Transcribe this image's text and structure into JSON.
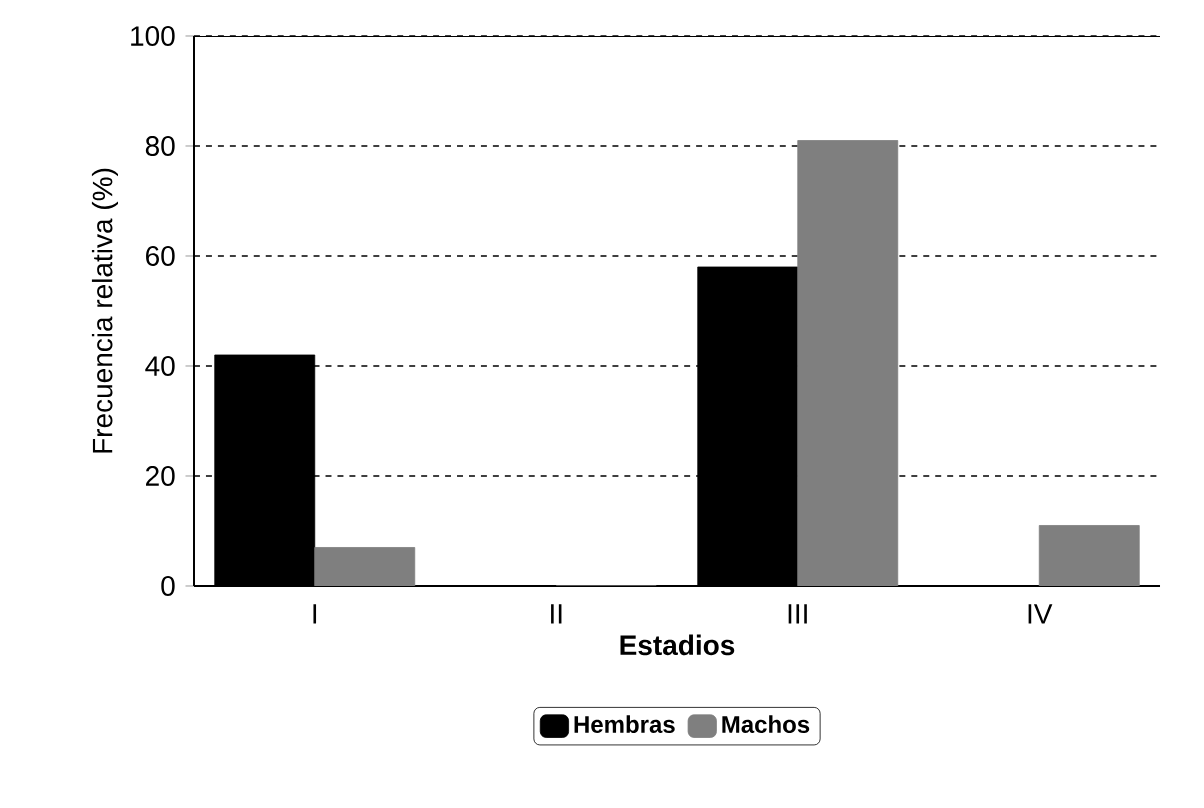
{
  "chart_data": {
    "type": "bar",
    "xlabel": "Estadios",
    "ylabel": "Frecuencia relativa (%)",
    "categories": [
      "I",
      "II",
      "III",
      "IV"
    ],
    "series": [
      {
        "name": "Hembras",
        "color": "#000000",
        "values": [
          42,
          0,
          58,
          0
        ]
      },
      {
        "name": "Machos",
        "color": "#7f7f7f",
        "values": [
          7,
          0,
          81,
          11
        ]
      }
    ],
    "ylim": [
      0,
      100
    ],
    "yticks": [
      0,
      20,
      40,
      60,
      80,
      100
    ],
    "grid": "y",
    "legend": "bottom"
  }
}
